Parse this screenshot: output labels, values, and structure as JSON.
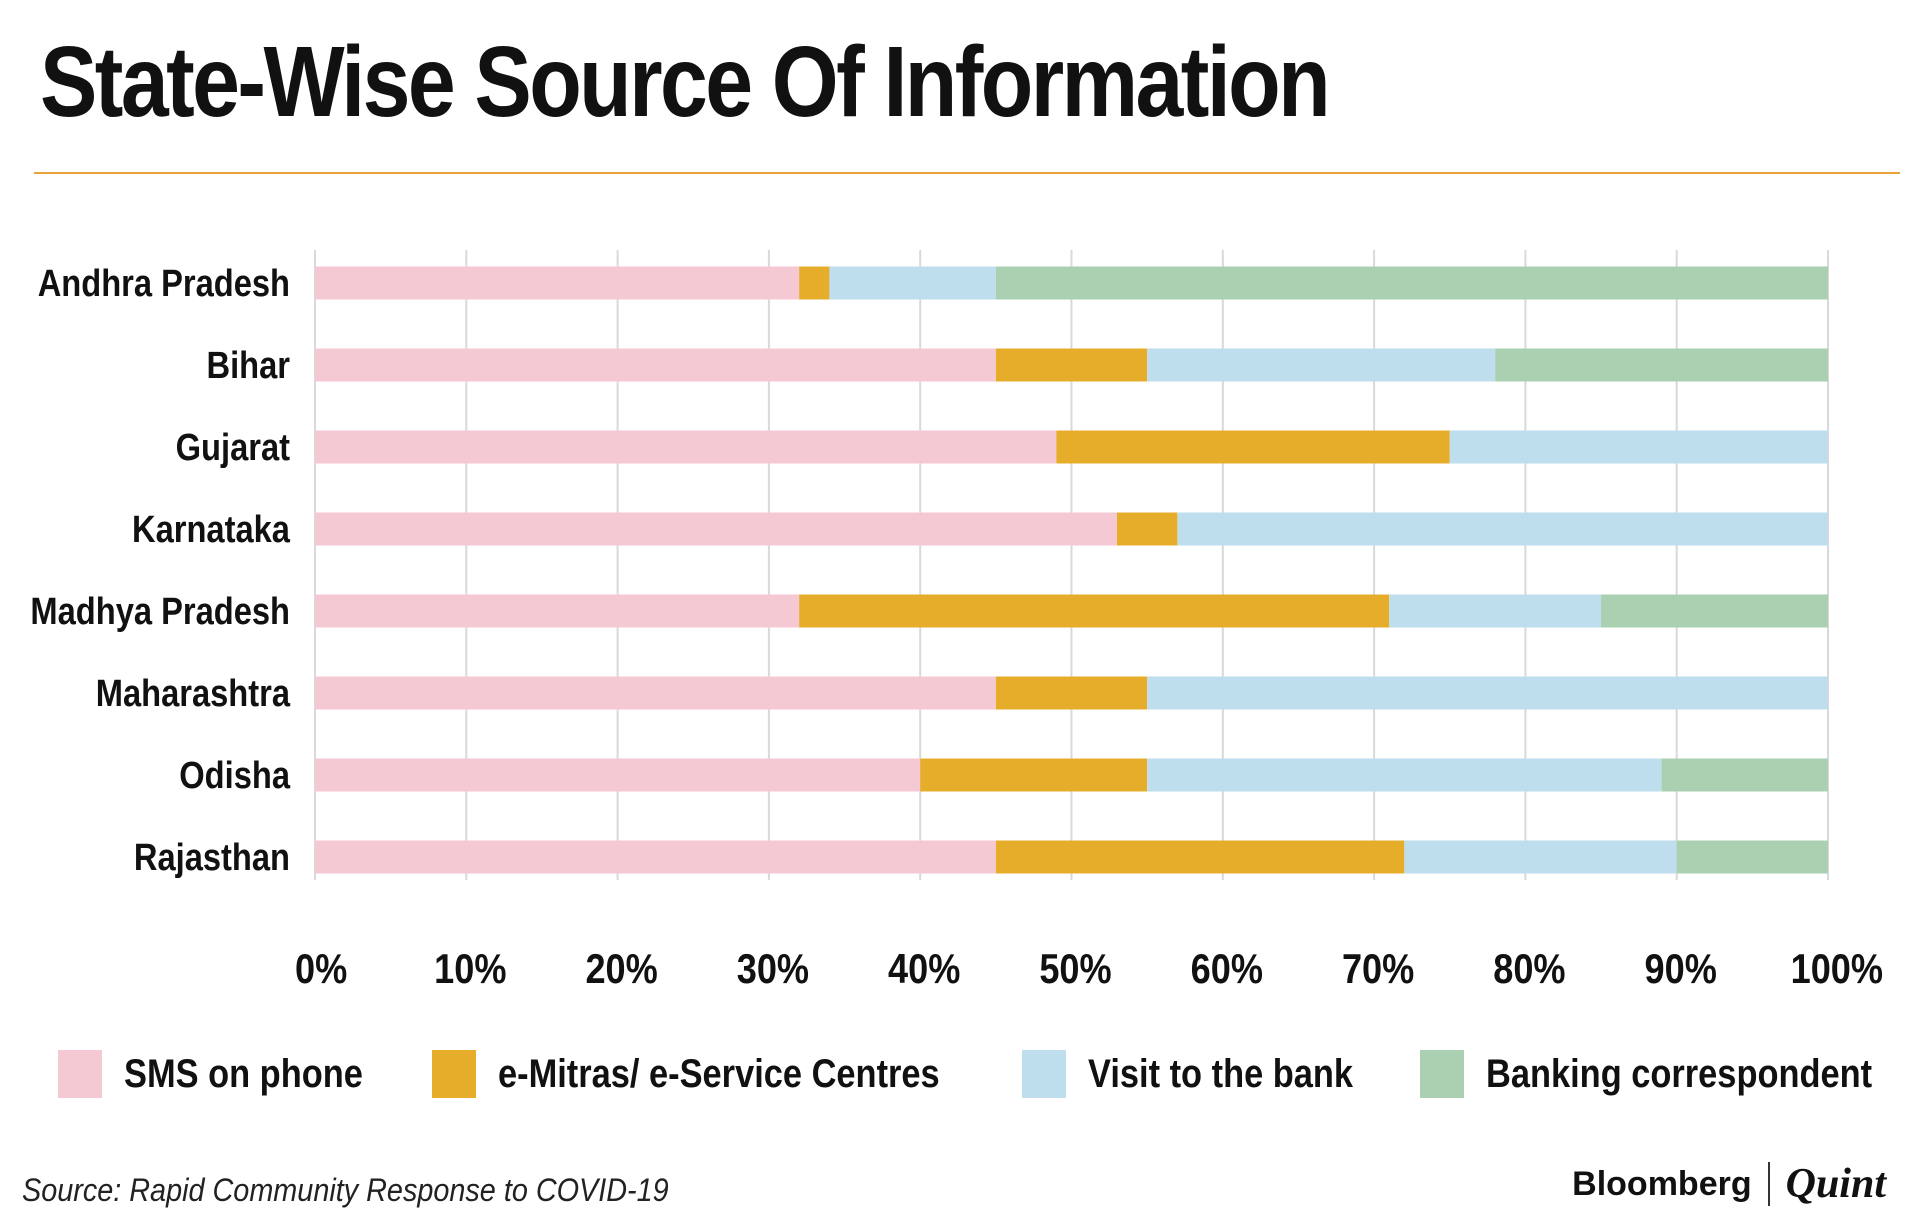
{
  "title": "State-Wise Source Of Information",
  "source_note": "Source: Rapid Community Response to COVID-19",
  "brand": {
    "primary": "Bloomberg",
    "secondary": "Quint"
  },
  "colors": {
    "accent_rule": "#e8a33a",
    "gridline": "#d9d9d9"
  },
  "chart_data": {
    "type": "bar",
    "orientation": "horizontal",
    "stacked": true,
    "categories": [
      "Andhra Pradesh",
      "Bihar",
      "Gujarat",
      "Karnataka",
      "Madhya Pradesh",
      "Maharashtra",
      "Odisha",
      "Rajasthan"
    ],
    "series": [
      {
        "name": "SMS on phone",
        "color": "#f5c9d3",
        "values": [
          32,
          45,
          49,
          53,
          32,
          45,
          40,
          45
        ]
      },
      {
        "name": "e-Mitras/ e-Service Centres",
        "color": "#e6ad2b",
        "values": [
          2,
          10,
          26,
          4,
          39,
          10,
          15,
          27
        ]
      },
      {
        "name": "Visit to the bank",
        "color": "#bfdeed",
        "values": [
          11,
          23,
          25,
          43,
          14,
          45,
          34,
          18
        ]
      },
      {
        "name": "Banking correspondent",
        "color": "#aad0b1",
        "values": [
          55,
          22,
          0,
          0,
          15,
          0,
          11,
          10
        ]
      }
    ],
    "xlim": [
      0,
      100
    ],
    "x_ticks": [
      "0%",
      "10%",
      "20%",
      "30%",
      "40%",
      "50%",
      "60%",
      "70%",
      "80%",
      "90%",
      "100%"
    ],
    "grid": "vertical",
    "legend_position": "bottom",
    "xlabel": "",
    "ylabel": ""
  }
}
